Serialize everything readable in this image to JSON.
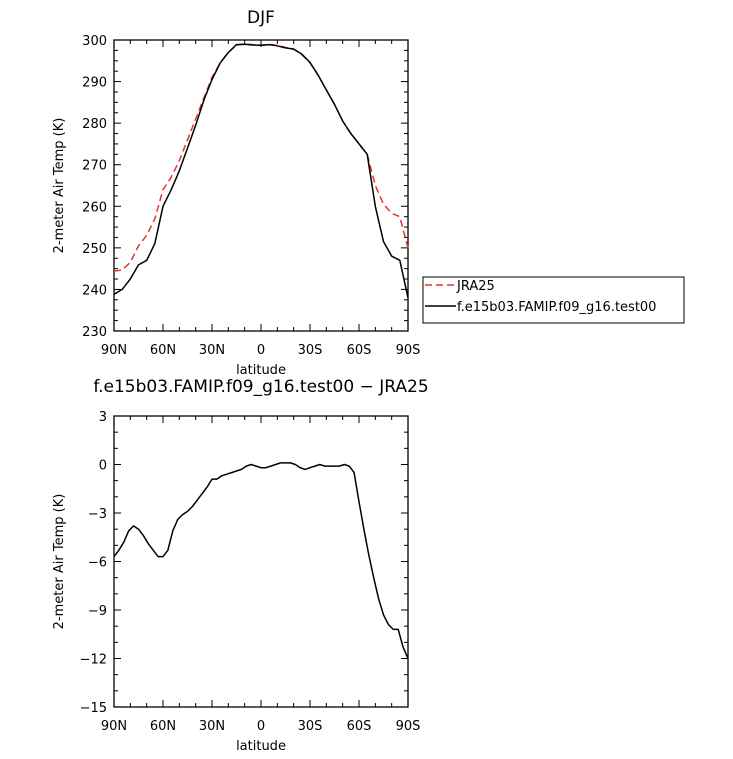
{
  "chart_data": [
    {
      "type": "line",
      "title": "DJF",
      "xlabel": "latitude",
      "ylabel": "2-meter Air Temp (K)",
      "xlim": [
        90,
        -90
      ],
      "ylim": [
        230,
        300
      ],
      "x_ticks": [
        90,
        60,
        30,
        0,
        -30,
        -60,
        -90
      ],
      "x_tick_labels": [
        "90N",
        "60N",
        "30N",
        "0",
        "30S",
        "60S",
        "90S"
      ],
      "y_ticks": [
        230,
        240,
        250,
        260,
        270,
        280,
        290,
        300
      ],
      "y_tick_labels": [
        "230",
        "240",
        "250",
        "260",
        "270",
        "280",
        "290",
        "300"
      ],
      "legend": "right",
      "series": [
        {
          "name": "JRA25",
          "color": "#e8322e",
          "dash": "dashed",
          "x": [
            90,
            85,
            80,
            75,
            70,
            65,
            60,
            55,
            50,
            45,
            40,
            35,
            30,
            25,
            20,
            15,
            10,
            5,
            0,
            -5,
            -10,
            -15,
            -20,
            -25,
            -30,
            -35,
            -40,
            -45,
            -50,
            -55,
            -60,
            -65,
            -70,
            -75,
            -80,
            -85,
            -90
          ],
          "values": [
            244.4,
            244.7,
            246.5,
            250.5,
            253.0,
            257.0,
            264.0,
            267.0,
            271.0,
            276.0,
            281.0,
            286.0,
            291.0,
            294.5,
            297.0,
            298.8,
            299.0,
            298.9,
            298.8,
            298.9,
            298.7,
            298.2,
            297.8,
            296.5,
            294.5,
            291.5,
            288.0,
            284.5,
            280.5,
            277.5,
            275.0,
            272.5,
            265.0,
            260.5,
            258.3,
            257.5,
            250.0
          ]
        },
        {
          "name": "f.e15b03.FAMIP.f09_g16.test00",
          "color": "#000000",
          "dash": "solid",
          "x": [
            90,
            85,
            80,
            75,
            70,
            65,
            60,
            55,
            50,
            45,
            40,
            35,
            30,
            25,
            20,
            15,
            10,
            5,
            0,
            -5,
            -10,
            -15,
            -20,
            -25,
            -30,
            -35,
            -40,
            -45,
            -50,
            -55,
            -60,
            -65,
            -70,
            -75,
            -80,
            -85,
            -90
          ],
          "values": [
            238.8,
            240.0,
            242.5,
            245.9,
            247.0,
            251.0,
            260.0,
            264.0,
            268.5,
            274.0,
            279.5,
            285.5,
            290.5,
            294.5,
            297.0,
            298.9,
            299.0,
            298.8,
            298.7,
            298.9,
            298.6,
            298.1,
            297.8,
            296.6,
            294.6,
            291.5,
            288.0,
            284.5,
            280.5,
            277.5,
            275.0,
            272.5,
            260.0,
            251.5,
            248.0,
            247.0,
            238.0
          ]
        }
      ]
    },
    {
      "type": "line",
      "title": "f.e15b03.FAMIP.f09_g16.test00 − JRA25",
      "xlabel": "latitude",
      "ylabel": "2-meter Air Temp (K)",
      "xlim": [
        90,
        -90
      ],
      "ylim": [
        -15,
        3
      ],
      "x_ticks": [
        90,
        60,
        30,
        0,
        -30,
        -60,
        -90
      ],
      "x_tick_labels": [
        "90N",
        "60N",
        "30N",
        "0",
        "30S",
        "60S",
        "90S"
      ],
      "y_ticks": [
        3,
        0,
        -3,
        -6,
        -9,
        -12,
        -15
      ],
      "y_tick_labels": [
        "3",
        "0",
        "−3",
        "−6",
        "−9",
        "−12",
        "−15"
      ],
      "series": [
        {
          "color": "#000000",
          "dash": "solid",
          "x": [
            90,
            87,
            84,
            81,
            78,
            75,
            72,
            69,
            66,
            63,
            60,
            57,
            54,
            51,
            48,
            45,
            42,
            39,
            36,
            33,
            30,
            27,
            24,
            21,
            18,
            15,
            12,
            9,
            6,
            3,
            0,
            -3,
            -6,
            -9,
            -12,
            -15,
            -18,
            -21,
            -24,
            -27,
            -30,
            -33,
            -36,
            -39,
            -42,
            -45,
            -48,
            -51,
            -54,
            -57,
            -60,
            -63,
            -66,
            -69,
            -72,
            -75,
            -78,
            -81,
            -84,
            -87,
            -90
          ],
          "values": [
            -5.7,
            -5.3,
            -4.8,
            -4.1,
            -3.8,
            -4.0,
            -4.4,
            -4.9,
            -5.3,
            -5.7,
            -5.7,
            -5.3,
            -4.1,
            -3.4,
            -3.1,
            -2.9,
            -2.6,
            -2.2,
            -1.8,
            -1.4,
            -0.9,
            -0.9,
            -0.7,
            -0.6,
            -0.5,
            -0.4,
            -0.3,
            -0.1,
            0.0,
            -0.1,
            -0.2,
            -0.2,
            -0.1,
            0.0,
            0.1,
            0.1,
            0.1,
            0.0,
            -0.2,
            -0.3,
            -0.2,
            -0.1,
            0.0,
            -0.1,
            -0.1,
            -0.1,
            -0.1,
            0.0,
            -0.1,
            -0.5,
            -2.3,
            -4.0,
            -5.6,
            -7.0,
            -8.3,
            -9.3,
            -9.9,
            -10.2,
            -10.2,
            -11.3,
            -12.0
          ]
        }
      ]
    }
  ]
}
